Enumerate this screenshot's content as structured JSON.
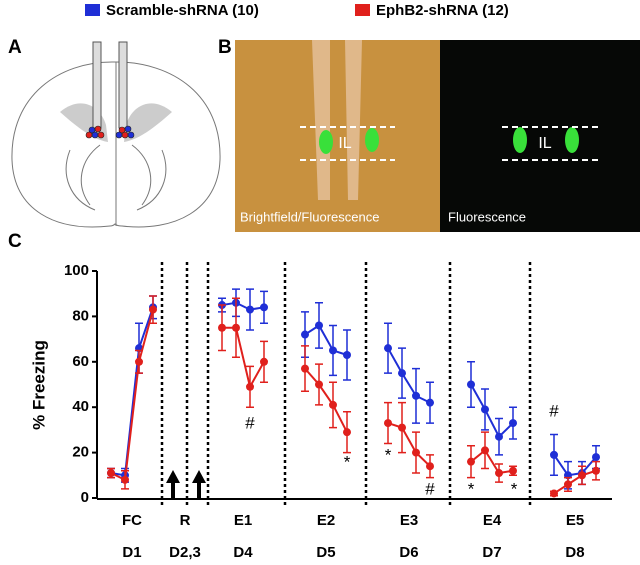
{
  "panels": {
    "a": "A",
    "b": "B",
    "c": "C"
  },
  "image_labels": {
    "il_left": "IL",
    "il_right": "IL",
    "left": "Brightfield/Fluorescence",
    "right": "Fluorescence"
  },
  "chart_data": {
    "type": "line",
    "ylabel": "% Freezing",
    "categories": [
      null,
      null,
      null,
      null,
      null,
      null,
      null,
      null,
      null,
      null,
      null,
      null,
      null,
      null,
      null,
      null,
      null,
      null,
      null,
      null,
      null,
      null,
      null,
      null
    ],
    "groups": [
      "FC",
      "R",
      "E1",
      "E2",
      "E3",
      "E4",
      "E5"
    ],
    "days": [
      "D1",
      "D2,3",
      "D4",
      "D5",
      "D6",
      "D7",
      "D8"
    ],
    "series": [
      {
        "name": "Scramble-shRNA (10)",
        "color": "#1f2fd6",
        "values": [
          11,
          10,
          66,
          84,
          85,
          86,
          83,
          84,
          72,
          76,
          65,
          63,
          66,
          55,
          45,
          42,
          50,
          39,
          27,
          33,
          19,
          10,
          11,
          18
        ],
        "errors": [
          2,
          3,
          11,
          5,
          3,
          6,
          9,
          7,
          10,
          10,
          11,
          11,
          11,
          11,
          12,
          9,
          10,
          9,
          8,
          7,
          9,
          6,
          5,
          5
        ]
      },
      {
        "name": "EphB2-shRNA (12)",
        "color": "#e0201c",
        "values": [
          11,
          8,
          60,
          83,
          75,
          75,
          49,
          60,
          57,
          50,
          41,
          29,
          33,
          31,
          20,
          14,
          16,
          21,
          11,
          12,
          2,
          6,
          10,
          12
        ],
        "errors": [
          2,
          4,
          5,
          6,
          10,
          13,
          9,
          9,
          10,
          9,
          10,
          9,
          9,
          11,
          9,
          5,
          7,
          8,
          4,
          2,
          1,
          3,
          4,
          4
        ]
      }
    ],
    "ylim": [
      0,
      100
    ],
    "yticks": [
      0,
      20,
      40,
      60,
      80,
      100
    ],
    "annotations": [
      "#",
      "*",
      "*",
      "#",
      "*",
      "*",
      "#"
    ]
  }
}
